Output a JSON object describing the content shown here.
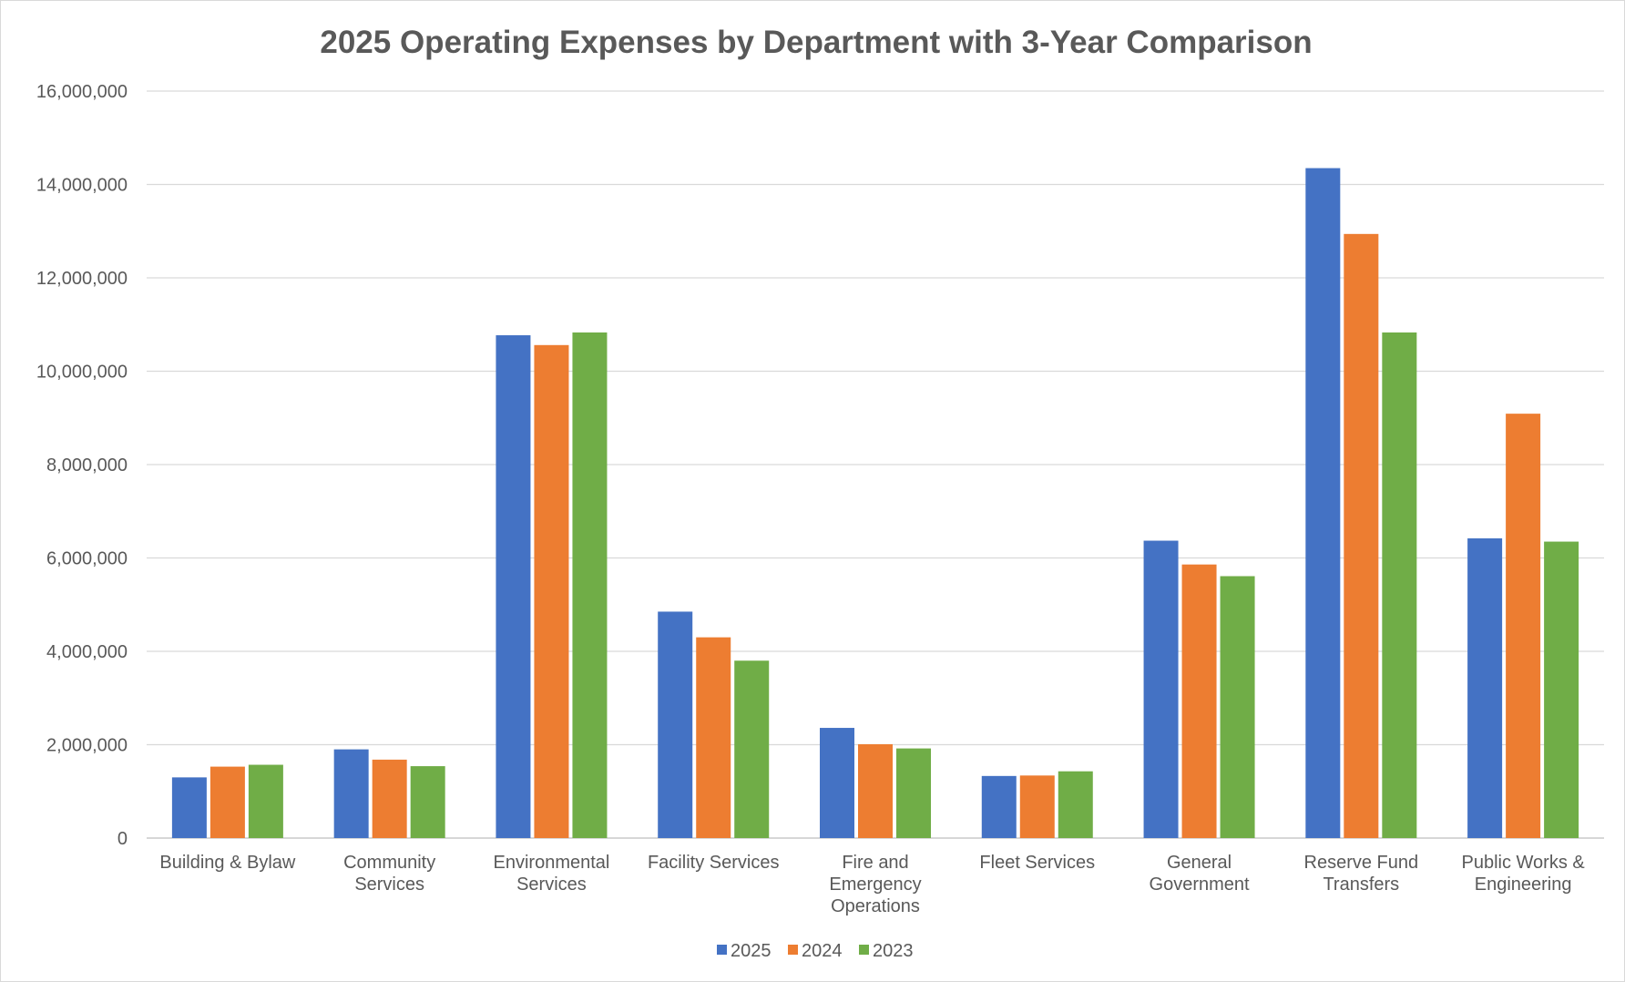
{
  "chart_data": {
    "type": "bar",
    "title": "2025 Operating Expenses by Department with 3-Year Comparison",
    "xlabel": "",
    "ylabel": "",
    "ylim": [
      0,
      16000000
    ],
    "yticks": [
      "0",
      "2,000,000",
      "4,000,000",
      "6,000,000",
      "8,000,000",
      "10,000,000",
      "12,000,000",
      "14,000,000",
      "16,000,000"
    ],
    "grid": true,
    "legend_position": "bottom",
    "categories": [
      [
        "Building & Bylaw"
      ],
      [
        "Community",
        "Services"
      ],
      [
        "Environmental",
        "Services"
      ],
      [
        "Facility Services"
      ],
      [
        "Fire and",
        "Emergency",
        "Operations"
      ],
      [
        "Fleet Services"
      ],
      [
        "General",
        "Government"
      ],
      [
        "Reserve Fund",
        "Transfers"
      ],
      [
        "Public Works &",
        "Engineering"
      ]
    ],
    "series": [
      {
        "name": "2025",
        "color": "#4472c4",
        "values": [
          1300000,
          1900000,
          10770000,
          4850000,
          2360000,
          1330000,
          6370000,
          14350000,
          6420000
        ]
      },
      {
        "name": "2024",
        "color": "#ed7d31",
        "values": [
          1530000,
          1680000,
          10560000,
          4300000,
          2010000,
          1340000,
          5860000,
          12940000,
          9090000
        ]
      },
      {
        "name": "2023",
        "color": "#70ad47",
        "values": [
          1570000,
          1540000,
          10830000,
          3800000,
          1920000,
          1430000,
          5610000,
          10830000,
          6350000
        ]
      }
    ]
  }
}
